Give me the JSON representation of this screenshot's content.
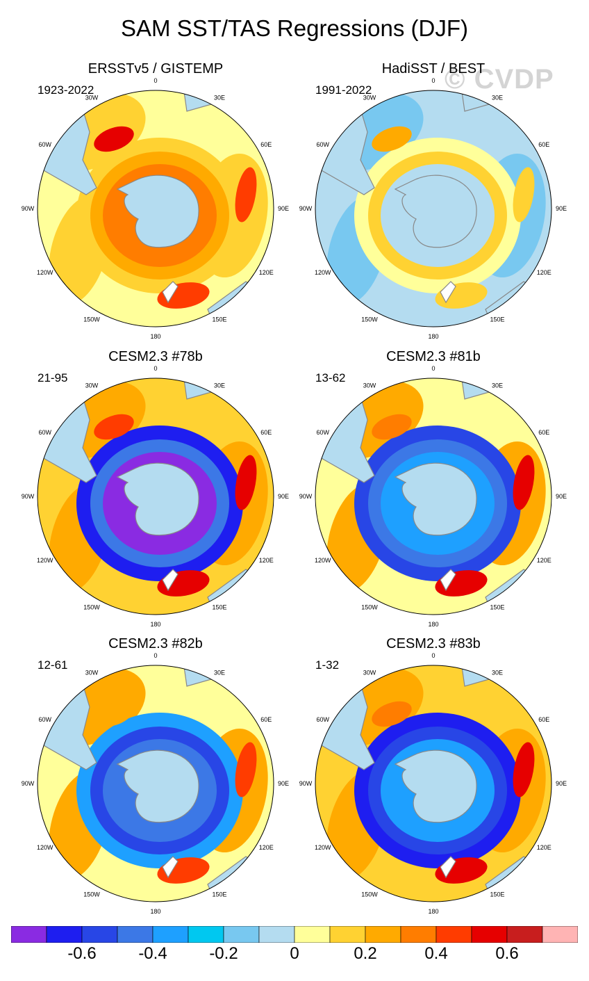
{
  "title": "SAM SST/TAS Regressions (DJF)",
  "watermark": "© CVDP",
  "lon_labels": [
    "0",
    "30E",
    "60E",
    "90E",
    "120E",
    "150E",
    "180",
    "150W",
    "120W",
    "90W",
    "60W",
    "30W"
  ],
  "panels": [
    {
      "title": "ERSSTv5 / GISTEMP",
      "period": "1923-2022"
    },
    {
      "title": "HadiSST / BEST",
      "period": "1991-2022"
    },
    {
      "title": "CESM2.3 #78b",
      "period": "21-95"
    },
    {
      "title": "CESM2.3 #81b",
      "period": "13-62"
    },
    {
      "title": "CESM2.3 #82b",
      "period": "12-61"
    },
    {
      "title": "CESM2.3 #83b",
      "period": "1-32"
    }
  ],
  "colorbar": {
    "colors": [
      "#8a2be2",
      "#1e1ef0",
      "#2846e6",
      "#3c78e6",
      "#1ea0ff",
      "#00c8f0",
      "#78c8f0",
      "#b4dcf0",
      "#ffff9a",
      "#ffd232",
      "#ffaa00",
      "#ff7d00",
      "#ff3c00",
      "#e60000",
      "#c81e1e",
      "#ffb4b4"
    ],
    "labels": [
      "-0.6",
      "-0.4",
      "-0.2",
      "0",
      "0.2",
      "0.4",
      "0.6"
    ]
  }
}
